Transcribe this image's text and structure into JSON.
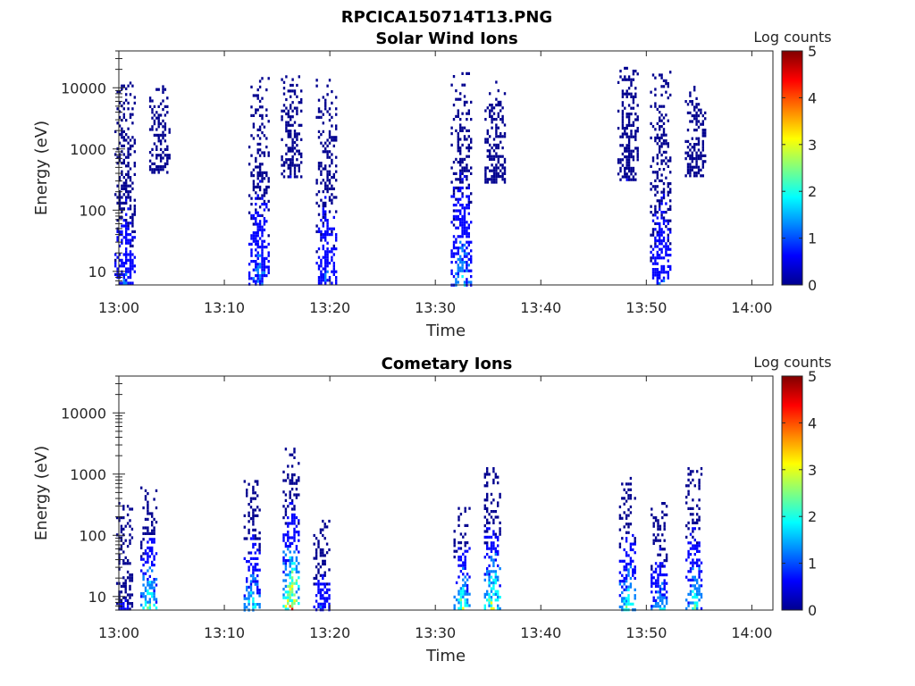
{
  "figure_title": "RPCICA150714T13.PNG",
  "colormap": [
    "#00008f",
    "#0000ff",
    "#0080ff",
    "#00ffff",
    "#80ff80",
    "#ffff00",
    "#ff8000",
    "#ff0000",
    "#800000"
  ],
  "chart_data": [
    {
      "type": "heatmap",
      "title": "Solar Wind Ions",
      "xlabel": "Time",
      "ylabel": "Energy (eV)",
      "y_scale": "log",
      "ylim": [
        6,
        40000
      ],
      "xlim": [
        "13:00",
        "14:02"
      ],
      "xticks": [
        "13:00",
        "13:10",
        "13:20",
        "13:30",
        "13:40",
        "13:50",
        "14:00"
      ],
      "yticks": [
        "10",
        "100",
        "1000",
        "10000"
      ],
      "colorbar": {
        "label": "Log counts",
        "range": [
          0,
          5
        ],
        "ticks": [
          "0",
          "1",
          "2",
          "3",
          "4",
          "5"
        ]
      },
      "bursts": [
        {
          "t_min": 0.5,
          "e_low": 6,
          "e_high": 14000,
          "peak_log_counts": 1.0
        },
        {
          "t_min": 3.8,
          "e_low": 400,
          "e_high": 11000,
          "peak_log_counts": 0.3
        },
        {
          "t_min": 13.2,
          "e_low": 6,
          "e_high": 15000,
          "peak_log_counts": 1.3
        },
        {
          "t_min": 16.3,
          "e_low": 350,
          "e_high": 16000,
          "peak_log_counts": 0.3
        },
        {
          "t_min": 19.6,
          "e_low": 6,
          "e_high": 14000,
          "peak_log_counts": 1.0
        },
        {
          "t_min": 32.4,
          "e_low": 6,
          "e_high": 18000,
          "peak_log_counts": 1.6
        },
        {
          "t_min": 35.6,
          "e_low": 300,
          "e_high": 13000,
          "peak_log_counts": 0.3
        },
        {
          "t_min": 48.2,
          "e_low": 300,
          "e_high": 22000,
          "peak_log_counts": 0.3
        },
        {
          "t_min": 51.3,
          "e_low": 6,
          "e_high": 19000,
          "peak_log_counts": 1.0
        },
        {
          "t_min": 54.6,
          "e_low": 350,
          "e_high": 12000,
          "peak_log_counts": 0.3
        }
      ]
    },
    {
      "type": "heatmap",
      "title": "Cometary Ions",
      "xlabel": "Time",
      "ylabel": "Energy (eV)",
      "y_scale": "log",
      "ylim": [
        6,
        40000
      ],
      "xlim": [
        "13:00",
        "14:02"
      ],
      "xticks": [
        "13:00",
        "13:10",
        "13:20",
        "13:30",
        "13:40",
        "13:50",
        "14:00"
      ],
      "yticks": [
        "10",
        "100",
        "1000",
        "10000"
      ],
      "colorbar": {
        "label": "Log counts",
        "range": [
          0,
          5
        ],
        "ticks": [
          "0",
          "1",
          "2",
          "3",
          "4",
          "5"
        ]
      },
      "bursts": [
        {
          "t_min": 0.5,
          "e_low": 6,
          "e_high": 350,
          "peak_log_counts": 0.5
        },
        {
          "t_min": 2.8,
          "e_low": 6,
          "e_high": 700,
          "peak_log_counts": 2.5
        },
        {
          "t_min": 12.6,
          "e_low": 6,
          "e_high": 800,
          "peak_log_counts": 2.2
        },
        {
          "t_min": 16.3,
          "e_low": 6,
          "e_high": 2700,
          "peak_log_counts": 3.8
        },
        {
          "t_min": 19.2,
          "e_low": 6,
          "e_high": 200,
          "peak_log_counts": 1.0
        },
        {
          "t_min": 32.5,
          "e_low": 6,
          "e_high": 400,
          "peak_log_counts": 2.6
        },
        {
          "t_min": 35.4,
          "e_low": 6,
          "e_high": 1300,
          "peak_log_counts": 3.1
        },
        {
          "t_min": 48.2,
          "e_low": 6,
          "e_high": 900,
          "peak_log_counts": 2.4
        },
        {
          "t_min": 51.2,
          "e_low": 6,
          "e_high": 350,
          "peak_log_counts": 1.8
        },
        {
          "t_min": 54.5,
          "e_low": 6,
          "e_high": 1300,
          "peak_log_counts": 2.2
        }
      ]
    }
  ]
}
